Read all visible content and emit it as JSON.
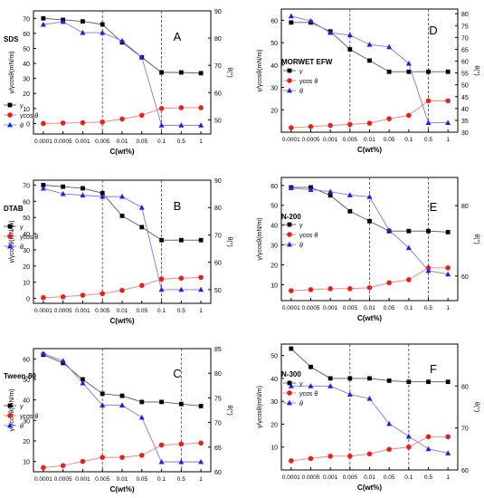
{
  "common": {
    "categories": [
      "0.0001",
      "0.0005",
      "0.001",
      "0.005",
      "0.01",
      "0.05",
      "0.1",
      "0.5",
      "1"
    ],
    "xlabel": "C(wt%)",
    "ylabel": "γ/γcosθ(mN/m)",
    "y2label": "θ(°)",
    "legend": [
      "γ",
      "γcos θ",
      "θ"
    ],
    "colors": {
      "gamma": "#000000",
      "gammacos": "#e8201a",
      "theta": "#1f1fe8",
      "theta_line": "#7a7ae8",
      "gammacos_line": "#f07c7c",
      "gamma_line": "#555555"
    }
  },
  "chart_data": [
    {
      "type": "line",
      "letter": "A",
      "surfactant": "SDS",
      "ylim": [
        -7,
        75
      ],
      "yticks": [
        0,
        10,
        20,
        30,
        40,
        50,
        60,
        70
      ],
      "y2lim": [
        44.8,
        90
      ],
      "y2ticks": [
        50,
        60,
        70,
        80,
        90
      ],
      "vlines": [
        "0.005",
        "0.1"
      ],
      "series": [
        {
          "name": "γ",
          "axis": "left",
          "values": [
            70,
            69,
            68,
            66,
            54,
            44,
            34,
            34,
            33.5
          ]
        },
        {
          "name": "γcos θ",
          "axis": "left",
          "values": [
            0,
            0.3,
            0.5,
            1,
            3,
            5.5,
            10,
            10.5,
            10.5
          ]
        },
        {
          "name": "θ",
          "axis": "right",
          "values": [
            85,
            86,
            82,
            82,
            79,
            73,
            48,
            48,
            48
          ]
        }
      ]
    },
    {
      "type": "line",
      "letter": "D",
      "surfactant": "MORWET EFW",
      "ylim": [
        10,
        65
      ],
      "yticks": [
        20,
        30,
        40,
        50,
        60
      ],
      "y2lim": [
        30,
        82
      ],
      "y2ticks": [
        30,
        35,
        40,
        45,
        50,
        55,
        60,
        65,
        70,
        75,
        80
      ],
      "vlines": [
        "0.005",
        "0.5"
      ],
      "series": [
        {
          "name": "γ",
          "axis": "left",
          "values": [
            59,
            59,
            55,
            47,
            42,
            37,
            37,
            37,
            37
          ]
        },
        {
          "name": "γcos θ",
          "axis": "left",
          "values": [
            12,
            12.5,
            13,
            13.5,
            14,
            16,
            17.5,
            24,
            24
          ]
        },
        {
          "name": "θ",
          "axis": "right",
          "values": [
            79,
            77,
            72,
            71,
            67,
            66,
            59,
            34,
            34
          ]
        }
      ]
    },
    {
      "type": "line",
      "letter": "B",
      "surfactant": "DTAB",
      "ylim": [
        -3,
        73
      ],
      "yticks": [
        0,
        10,
        20,
        30,
        40,
        50,
        60,
        70
      ],
      "y2lim": [
        45,
        90
      ],
      "y2ticks": [
        50,
        60,
        70,
        80,
        90
      ],
      "vlines": [
        "0.005",
        "0.1"
      ],
      "series": [
        {
          "name": "γ",
          "axis": "left",
          "values": [
            70,
            69,
            68,
            65,
            51,
            44,
            36,
            36,
            36
          ]
        },
        {
          "name": "γcos θ",
          "axis": "left",
          "values": [
            0.5,
            1,
            2,
            3,
            5,
            8,
            12,
            12.5,
            13
          ]
        },
        {
          "name": "θ",
          "axis": "right",
          "values": [
            87,
            85,
            84.5,
            84,
            84,
            80,
            50,
            50,
            50
          ]
        }
      ]
    },
    {
      "type": "line",
      "letter": "E",
      "surfactant": "N-200",
      "ylim": [
        2,
        64
      ],
      "yticks": [
        10,
        20,
        30,
        40,
        50,
        60
      ],
      "y2lim": [
        53,
        88
      ],
      "y2ticks": [
        60,
        80
      ],
      "vlines": [
        "0.01",
        "0.5"
      ],
      "series": [
        {
          "name": "γ",
          "axis": "left",
          "values": [
            59,
            59,
            55,
            47,
            42,
            37,
            37,
            37,
            36.5
          ]
        },
        {
          "name": "γcos θ",
          "axis": "left",
          "values": [
            7,
            7.5,
            8,
            8,
            8.5,
            11,
            12.5,
            18.5,
            18.5
          ]
        },
        {
          "name": "θ",
          "axis": "right",
          "values": [
            85,
            84.5,
            84,
            83,
            82.5,
            73,
            68,
            61.5,
            60.5
          ]
        }
      ]
    },
    {
      "type": "line",
      "letter": "C",
      "surfactant": "Tween-80",
      "ylim": [
        5,
        65
      ],
      "yticks": [
        10,
        20,
        30,
        40,
        50,
        60
      ],
      "y2lim": [
        60,
        85
      ],
      "y2ticks": [
        60,
        65,
        70,
        75,
        80,
        85
      ],
      "vlines": [
        "0.005",
        "0.5"
      ],
      "series": [
        {
          "name": "γ",
          "axis": "left",
          "values": [
            62,
            58,
            50,
            43,
            42,
            39,
            39,
            38,
            37
          ]
        },
        {
          "name": "γcos θ",
          "axis": "left",
          "values": [
            7,
            8,
            10,
            12,
            12,
            13,
            18,
            18.5,
            19
          ]
        },
        {
          "name": "θ",
          "axis": "right",
          "values": [
            84,
            82.5,
            78,
            73.5,
            73.5,
            71,
            62,
            62,
            62
          ]
        }
      ]
    },
    {
      "type": "line",
      "letter": "F",
      "surfactant": "N-300",
      "ylim": [
        0,
        55
      ],
      "yticks": [
        10,
        20,
        30,
        40,
        50
      ],
      "y2lim": [
        60,
        90
      ],
      "y2ticks": [
        60,
        70,
        80
      ],
      "vlines": [
        "0.005",
        "0.1"
      ],
      "series": [
        {
          "name": "γ",
          "axis": "left",
          "values": [
            53,
            45,
            40,
            40,
            40,
            39,
            38.5,
            38.5,
            38.5
          ]
        },
        {
          "name": "γcos θ",
          "axis": "left",
          "values": [
            4,
            5,
            6,
            6,
            7,
            9,
            10,
            14.5,
            14.5
          ]
        },
        {
          "name": "θ",
          "axis": "right",
          "values": [
            80,
            80,
            80,
            78,
            77,
            71,
            68,
            65,
            64
          ]
        }
      ]
    }
  ]
}
